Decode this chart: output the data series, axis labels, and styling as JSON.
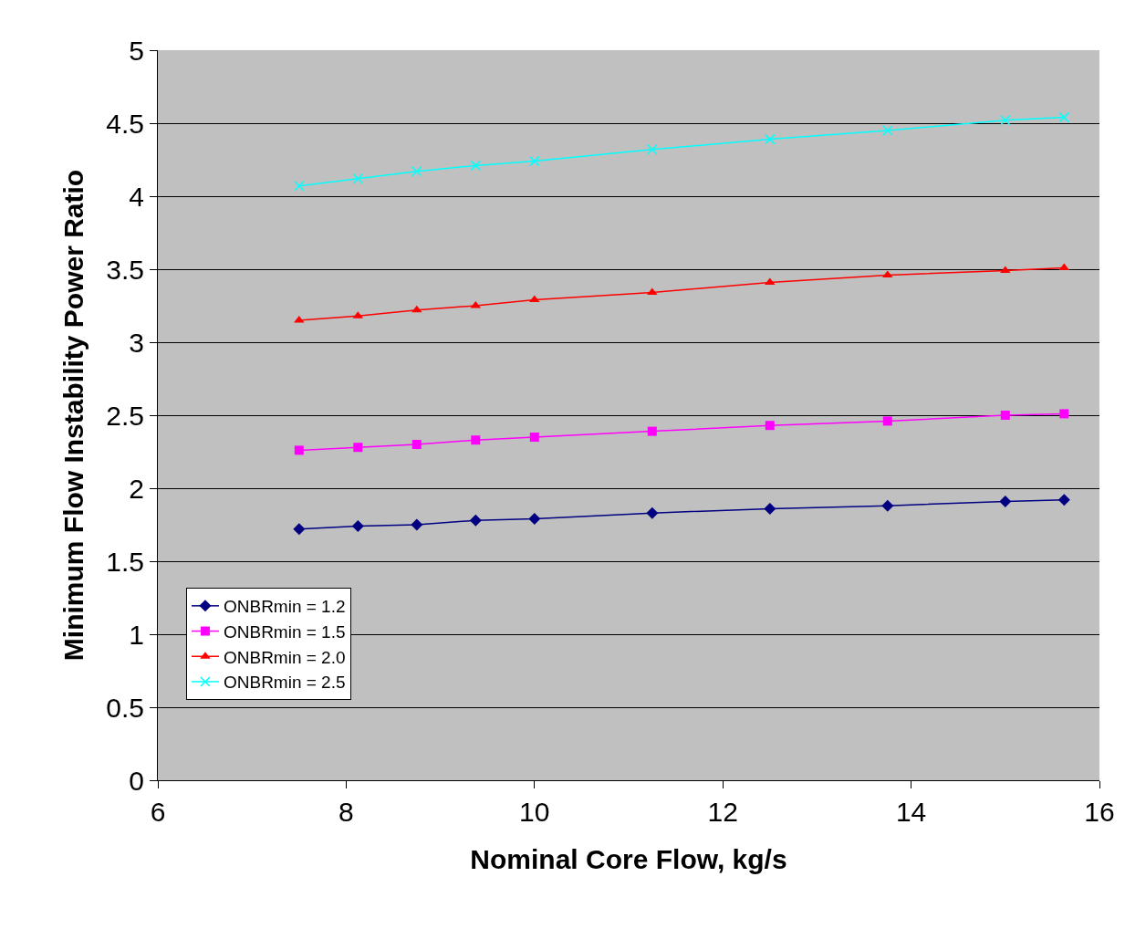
{
  "chart_data": {
    "type": "line",
    "xlabel": "Nominal Core Flow, kg/s",
    "ylabel": "Minimum Flow Instability Power Ratio",
    "x": [
      7.5,
      8.125,
      8.75,
      9.375,
      10,
      11.25,
      12.5,
      13.75,
      15,
      15.625
    ],
    "series": [
      {
        "name": "ONBRmin = 1.2",
        "color": "#000080",
        "marker": "diamond",
        "values": [
          1.72,
          1.74,
          1.75,
          1.78,
          1.79,
          1.83,
          1.86,
          1.88,
          1.91,
          1.92
        ]
      },
      {
        "name": "ONBRmin = 1.5",
        "color": "#ff00ff",
        "marker": "square",
        "values": [
          2.26,
          2.28,
          2.3,
          2.33,
          2.35,
          2.39,
          2.43,
          2.46,
          2.5,
          2.51
        ]
      },
      {
        "name": "ONBRmin = 2.0",
        "color": "#ff0000",
        "marker": "triangle",
        "values": [
          3.15,
          3.18,
          3.22,
          3.25,
          3.29,
          3.34,
          3.41,
          3.46,
          3.49,
          3.51
        ]
      },
      {
        "name": "ONBRmin = 2.5",
        "color": "#00ffff",
        "marker": "cross",
        "values": [
          4.07,
          4.12,
          4.17,
          4.21,
          4.24,
          4.32,
          4.39,
          4.45,
          4.52,
          4.54
        ]
      }
    ],
    "xlim": [
      6,
      16
    ],
    "xticks": [
      6,
      8,
      10,
      12,
      14,
      16
    ],
    "ylim": [
      0,
      5
    ],
    "yticks": [
      0,
      0.5,
      1,
      1.5,
      2,
      2.5,
      3,
      3.5,
      4,
      4.5,
      5
    ],
    "grid": "y",
    "legend": "bottom left",
    "line_style": "solid"
  }
}
